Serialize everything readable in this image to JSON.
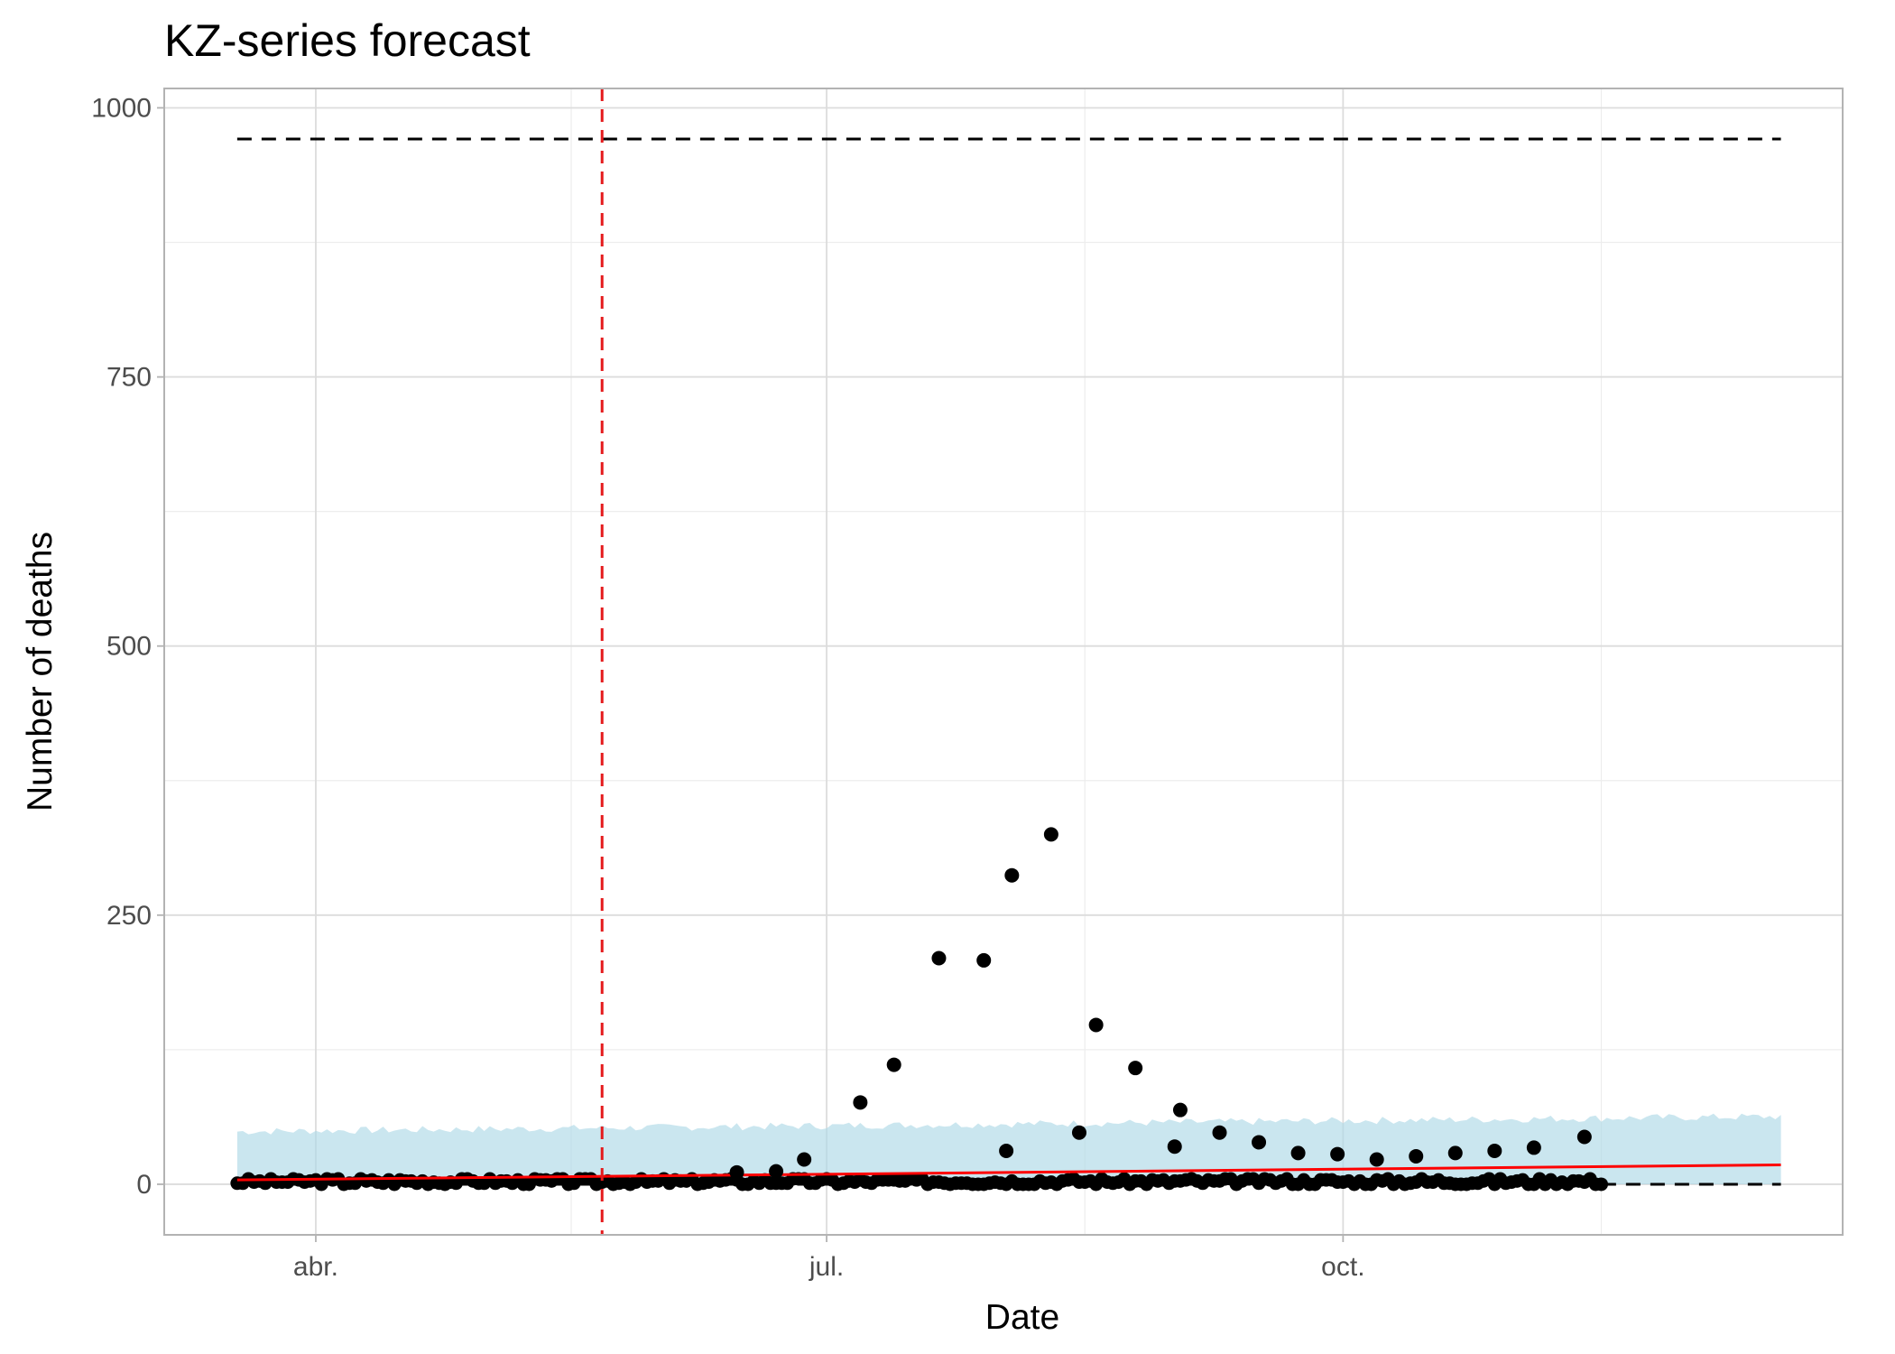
{
  "chart_data": {
    "type": "scatter",
    "title": "KZ-series forecast",
    "xlabel": "Date",
    "ylabel": "Number of deaths",
    "x_ticks": [
      {
        "date": "2020-04-01",
        "label": "abr."
      },
      {
        "date": "2020-07-01",
        "label": "jul."
      },
      {
        "date": "2020-10-01",
        "label": "oct."
      }
    ],
    "y_ticks": [
      0,
      250,
      500,
      750,
      1000
    ],
    "xlim": [
      "2020-03-05",
      "2020-12-29"
    ],
    "ylim": [
      -47,
      1018
    ],
    "grid": true,
    "vertical_reference_line": {
      "date": "2020-05-22",
      "color": "#e41a1c",
      "style": "dashed"
    },
    "upper_capacity_line": {
      "from": "2020-03-18",
      "to": "2020-12-18",
      "value": 971,
      "style": "dashed"
    },
    "lower_baseline_line": {
      "from": "2020-03-18",
      "to": "2020-12-18",
      "value": 0,
      "style": "dashed"
    },
    "forecast_band": {
      "color": "#add8e6",
      "from": "2020-03-18",
      "to": "2020-12-18",
      "lower": 0,
      "upper_start": 49,
      "upper_end": 63
    },
    "trend_line": {
      "color": "#ff0000",
      "from": "2020-03-18",
      "to": "2020-12-18",
      "start": 4,
      "end": 18
    },
    "series": [
      {
        "points": [
          {
            "x": "2020-07-07",
            "y": 76
          },
          {
            "x": "2020-07-13",
            "y": 111
          },
          {
            "x": "2020-07-21",
            "y": 210
          },
          {
            "x": "2020-07-29",
            "y": 208
          },
          {
            "x": "2020-08-03",
            "y": 287
          },
          {
            "x": "2020-08-10",
            "y": 325
          },
          {
            "x": "2020-08-18",
            "y": 148
          },
          {
            "x": "2020-08-25",
            "y": 108
          },
          {
            "x": "2020-08-02",
            "y": 31
          },
          {
            "x": "2020-08-15",
            "y": 48
          },
          {
            "x": "2020-09-01",
            "y": 35
          },
          {
            "x": "2020-09-02",
            "y": 69
          },
          {
            "x": "2020-09-09",
            "y": 48
          },
          {
            "x": "2020-09-16",
            "y": 39
          },
          {
            "x": "2020-09-23",
            "y": 29
          },
          {
            "x": "2020-09-30",
            "y": 28
          },
          {
            "x": "2020-10-07",
            "y": 23
          },
          {
            "x": "2020-10-14",
            "y": 26
          },
          {
            "x": "2020-10-21",
            "y": 29
          },
          {
            "x": "2020-10-28",
            "y": 31
          },
          {
            "x": "2020-11-04",
            "y": 34
          },
          {
            "x": "2020-11-13",
            "y": 44
          },
          {
            "x": "2020-06-27",
            "y": 23
          },
          {
            "x": "2020-06-22",
            "y": 12
          },
          {
            "x": "2020-06-15",
            "y": 11
          }
        ],
        "near_zero_daily_range": {
          "from": "2020-03-18",
          "to": "2020-11-16",
          "typical": 1
        }
      }
    ]
  }
}
